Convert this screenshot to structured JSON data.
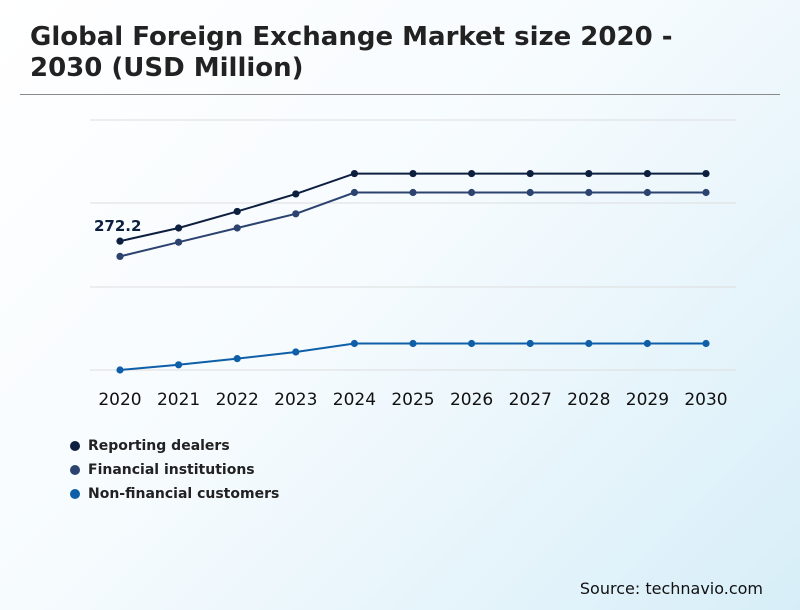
{
  "title": "Global Foreign Exchange Market size 2020 - 2030 (USD Million)",
  "source": "Source: technavio.com",
  "colors": {
    "reporting_dealers": "#0d1f3f",
    "financial_institutions": "#2c4370",
    "non_financial_customers": "#0f5fa8"
  },
  "chart_data": {
    "type": "line",
    "x": [
      "2020",
      "2021",
      "2022",
      "2023",
      "2024",
      "2025",
      "2026",
      "2027",
      "2028",
      "2029",
      "2030"
    ],
    "grid": true,
    "legend_position": "bottom-left",
    "ylim": [
      0,
      450
    ],
    "series": [
      {
        "name": "Reporting dealers",
        "color": "#0d1f3f",
        "values": [
          272.2,
          300,
          335,
          372,
          415,
          415,
          415,
          415,
          415,
          415,
          415
        ]
      },
      {
        "name": "Financial institutions",
        "color": "#2c4370",
        "values": [
          240,
          270,
          300,
          330,
          375,
          375,
          375,
          375,
          375,
          375,
          375
        ]
      },
      {
        "name": "Non-financial customers",
        "color": "#0f5fa8",
        "values": [
          0,
          11,
          24,
          38,
          56,
          56,
          56,
          56,
          56,
          56,
          56
        ]
      }
    ],
    "annotations": [
      {
        "text": "272.2",
        "series": 0,
        "index": 0
      }
    ]
  }
}
